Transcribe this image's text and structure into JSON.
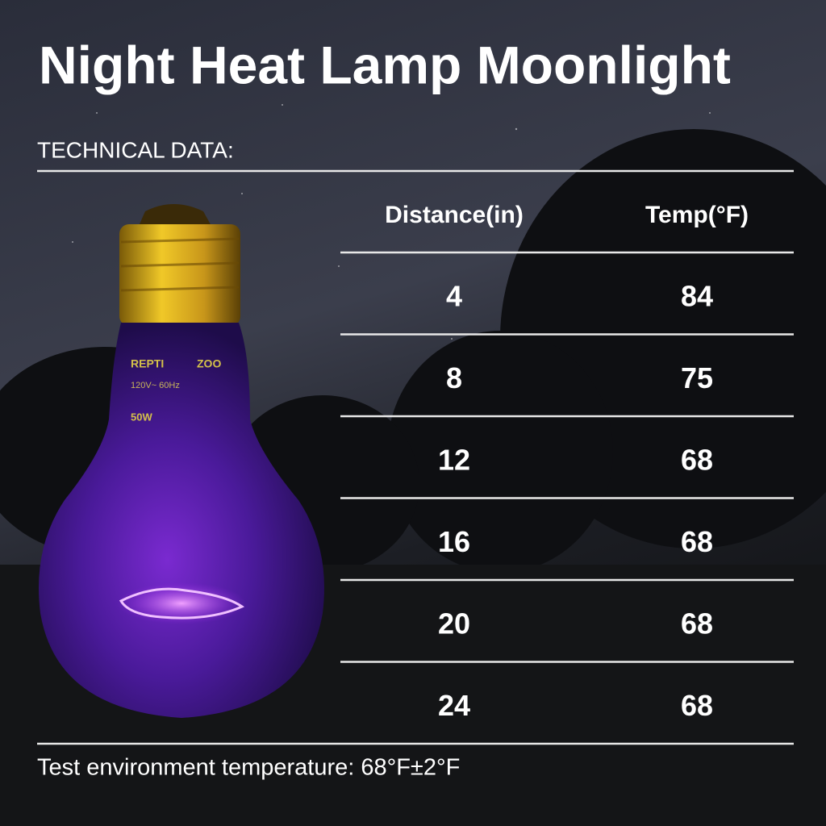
{
  "title": "Night Heat Lamp Moonlight",
  "subtitle": "TECHNICAL DATA:",
  "bulb": {
    "brand_left": "REPTI",
    "brand_right": "ZOO",
    "rating": "120V~ 60Hz",
    "power": "50W"
  },
  "table": {
    "headers": [
      "Distance(in)",
      "Temp(°F)"
    ],
    "rows": [
      [
        4,
        84
      ],
      [
        8,
        75
      ],
      [
        12,
        68
      ],
      [
        16,
        68
      ],
      [
        20,
        68
      ],
      [
        24,
        68
      ]
    ]
  },
  "footer": "Test environment temperature: 68°F±2°F"
}
